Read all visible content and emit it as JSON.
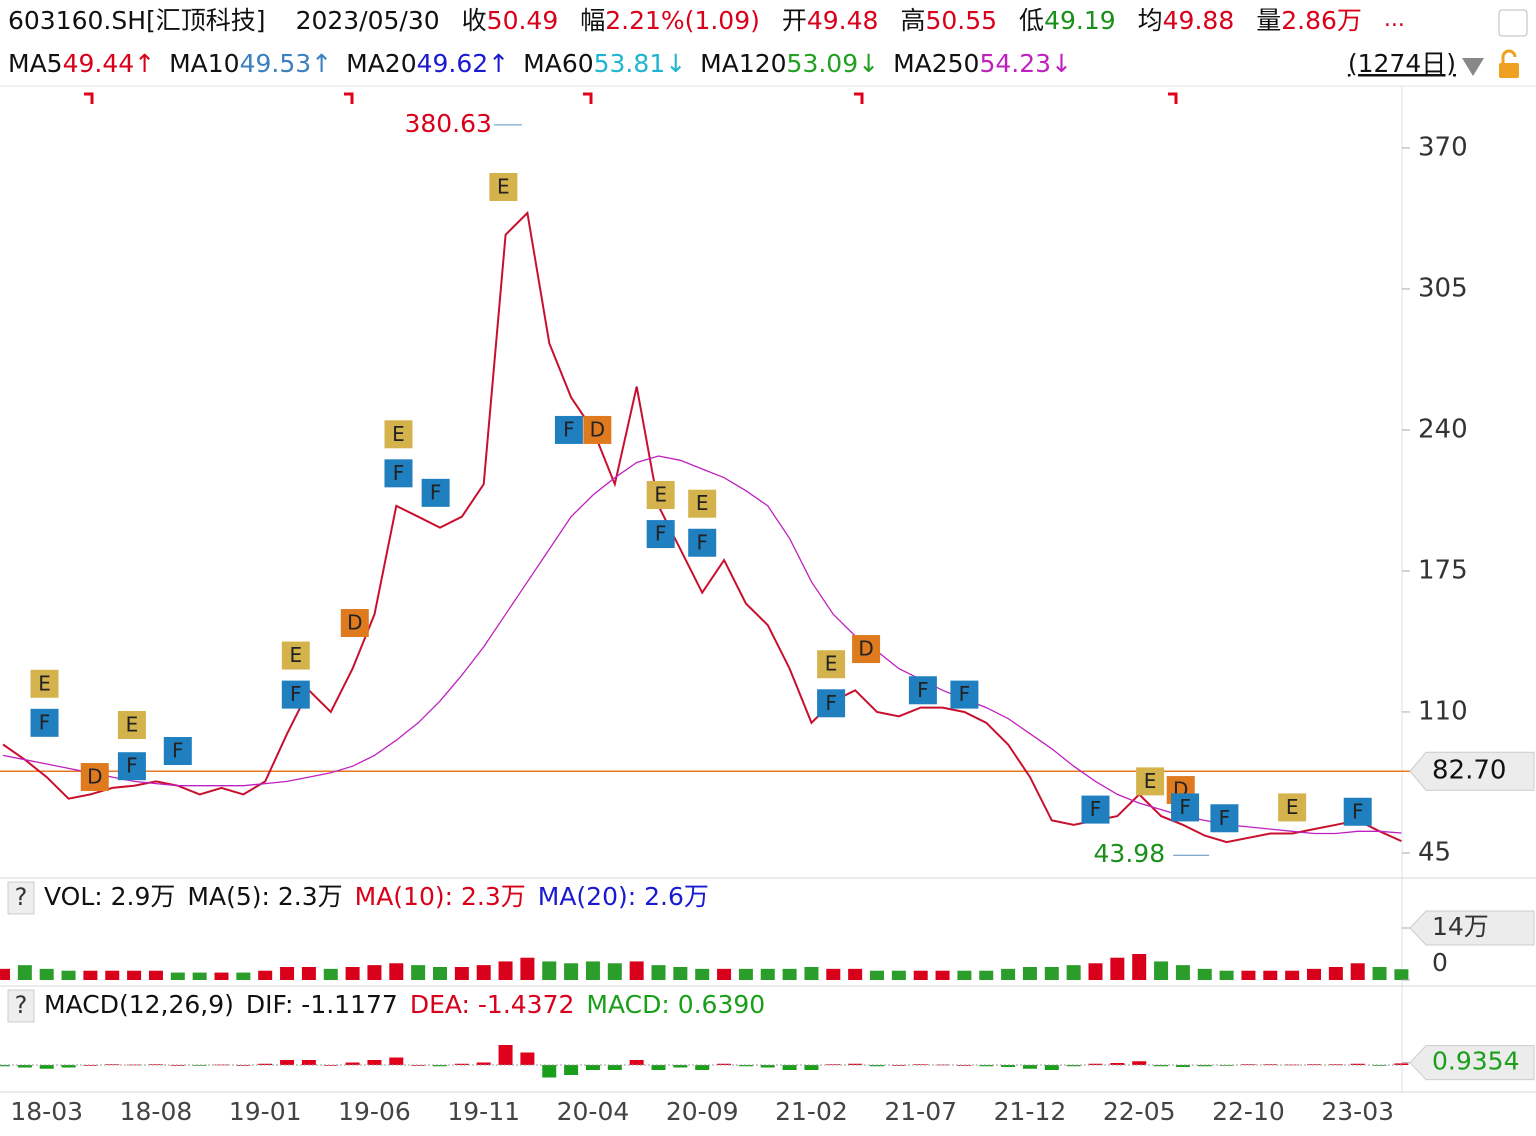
{
  "header": {
    "code": "603160.SH[汇顶科技]",
    "date": "2023/05/30",
    "quotes": [
      {
        "label": "收",
        "value": "50.49",
        "color": "#d9001b"
      },
      {
        "label": "幅",
        "value": "2.21%(1.09)",
        "color": "#d9001b"
      },
      {
        "label": "开",
        "value": "49.48",
        "color": "#d9001b"
      },
      {
        "label": "高",
        "value": "50.55",
        "color": "#d9001b"
      },
      {
        "label": "低",
        "value": "49.19",
        "color": "#1a8f1a"
      },
      {
        "label": "均",
        "value": "49.88",
        "color": "#d9001b"
      },
      {
        "label": "量",
        "value": "2.86万",
        "color": "#d9001b"
      }
    ],
    "more": "..."
  },
  "ma_bar": {
    "items": [
      {
        "label": "MA5",
        "value": "49.44↑",
        "color": "#d9001b"
      },
      {
        "label": "MA10",
        "value": "49.53↑",
        "color": "#3a7fbf"
      },
      {
        "label": "MA20",
        "value": "49.62↑",
        "color": "#1a1ad0"
      },
      {
        "label": "MA60",
        "value": "53.81↓",
        "color": "#1eb5d0"
      },
      {
        "label": "MA120",
        "value": "53.09↓",
        "color": "#22a022"
      },
      {
        "label": "MA250",
        "value": "54.23↓",
        "color": "#c020c0"
      }
    ],
    "days": "(1274日)"
  },
  "chart_data": [
    {
      "type": "line",
      "categories": [
        null,
        null,
        "18-03",
        null,
        null,
        null,
        null,
        "18-08",
        null,
        null,
        null,
        null,
        "19-01",
        null,
        null,
        null,
        null,
        "19-06",
        null,
        null,
        null,
        null,
        "19-11",
        null,
        null,
        null,
        null,
        "20-04",
        null,
        null,
        null,
        null,
        "20-09",
        null,
        null,
        null,
        null,
        "21-02",
        null,
        null,
        null,
        null,
        "21-07",
        null,
        null,
        null,
        null,
        "21-12",
        null,
        null,
        null,
        null,
        "22-05",
        null,
        null,
        null,
        null,
        "22-10",
        null,
        null,
        null,
        null,
        "23-03",
        null,
        null
      ],
      "series": [
        {
          "color": "#c8102e",
          "values": [
            95,
            88,
            80,
            70,
            72,
            75,
            76,
            78,
            76,
            72,
            75,
            72,
            78,
            100,
            120,
            110,
            130,
            155,
            205,
            200,
            195,
            200,
            215,
            330,
            340,
            280,
            255,
            240,
            215,
            260,
            205,
            185,
            165,
            180,
            160,
            150,
            130,
            105,
            115,
            120,
            110,
            108,
            112,
            112,
            110,
            105,
            95,
            80,
            60,
            58,
            60,
            62,
            72,
            62,
            58,
            53,
            50,
            52,
            54,
            54,
            56,
            58,
            60,
            55,
            50.49
          ]
        },
        {
          "color": "#c020c0",
          "values": [
            90,
            88,
            86,
            84,
            82,
            80,
            78,
            77,
            76,
            76,
            76,
            76,
            77,
            78,
            80,
            82,
            85,
            90,
            97,
            105,
            115,
            127,
            140,
            155,
            170,
            185,
            200,
            210,
            218,
            225,
            228,
            226,
            222,
            218,
            212,
            205,
            190,
            170,
            155,
            145,
            138,
            130,
            125,
            120,
            116,
            112,
            107,
            100,
            93,
            85,
            78,
            72,
            68,
            65,
            62,
            60,
            58,
            57,
            56,
            55,
            54,
            54,
            55,
            55,
            54.23
          ]
        }
      ],
      "ylim": [
        34.85,
        396.7
      ],
      "yticks": [
        370,
        305,
        240,
        175,
        110,
        45
      ],
      "level": {
        "value": 82.7,
        "label": "82.70",
        "color": "#e87722"
      },
      "max": {
        "x": 23.75,
        "value": 380.63,
        "label": "380.63"
      },
      "min": {
        "x": 55.2,
        "value": 43.98,
        "label": "43.98"
      },
      "events": [
        {
          "label": "E",
          "x": 1.9,
          "y": 123
        },
        {
          "label": "F",
          "x": 1.9,
          "y": 105
        },
        {
          "label": "D",
          "x": 4.2,
          "y": 80
        },
        {
          "label": "E",
          "x": 5.9,
          "y": 104
        },
        {
          "label": "F",
          "x": 5.9,
          "y": 85
        },
        {
          "label": "F",
          "x": 8.0,
          "y": 92
        },
        {
          "label": "E",
          "x": 13.4,
          "y": 136
        },
        {
          "label": "F",
          "x": 13.4,
          "y": 118
        },
        {
          "label": "D",
          "x": 16.1,
          "y": 151
        },
        {
          "label": "E",
          "x": 18.1,
          "y": 238
        },
        {
          "label": "F",
          "x": 18.1,
          "y": 220
        },
        {
          "label": "F",
          "x": 19.8,
          "y": 211
        },
        {
          "label": "E",
          "x": 22.9,
          "y": 352
        },
        {
          "label": "F",
          "x": 25.9,
          "y": 240
        },
        {
          "label": "D",
          "x": 27.2,
          "y": 240
        },
        {
          "label": "E",
          "x": 30.1,
          "y": 210
        },
        {
          "label": "F",
          "x": 30.1,
          "y": 192
        },
        {
          "label": "E",
          "x": 32.0,
          "y": 206
        },
        {
          "label": "F",
          "x": 32.0,
          "y": 188
        },
        {
          "label": "E",
          "x": 37.9,
          "y": 132
        },
        {
          "label": "F",
          "x": 37.9,
          "y": 114
        },
        {
          "label": "D",
          "x": 39.5,
          "y": 139
        },
        {
          "label": "F",
          "x": 42.1,
          "y": 120
        },
        {
          "label": "F",
          "x": 44.0,
          "y": 118
        },
        {
          "label": "F",
          "x": 50.0,
          "y": 65
        },
        {
          "label": "E",
          "x": 52.5,
          "y": 78
        },
        {
          "label": "D",
          "x": 53.9,
          "y": 74
        },
        {
          "label": "F",
          "x": 54.1,
          "y": 66
        },
        {
          "label": "F",
          "x": 55.9,
          "y": 61
        },
        {
          "label": "E",
          "x": 59.0,
          "y": 66
        },
        {
          "label": "F",
          "x": 62.0,
          "y": 64
        }
      ],
      "event_colors": {
        "E": "#d4b24c",
        "F": "#1f7fbf",
        "D": "#e07a1f"
      }
    },
    {
      "type": "bar",
      "help": "?",
      "items": [
        {
          "text": "VOL: 2.9万",
          "color": "#111111"
        },
        {
          "text": "MA(5): 2.3万",
          "color": "#111111"
        },
        {
          "text": "MA(10): 2.3万",
          "color": "#d9001b"
        },
        {
          "text": "MA(20): 2.6万",
          "color": "#1a1ad0"
        }
      ],
      "values": [
        3,
        4,
        3,
        2.5,
        2.5,
        2.5,
        2.5,
        2.5,
        2,
        2,
        2,
        2,
        2.5,
        3.5,
        3.5,
        3,
        3.5,
        4,
        4.5,
        4,
        3.5,
        3.5,
        4,
        5,
        6,
        5,
        4.5,
        5,
        4.5,
        5,
        4,
        3.5,
        3,
        3,
        3,
        3,
        3,
        3.5,
        3,
        3,
        2.5,
        2.5,
        2.5,
        2.5,
        2.5,
        2.5,
        3,
        3.5,
        3.5,
        4,
        4.5,
        6,
        7,
        5,
        4,
        3,
        2.5,
        2.5,
        2.5,
        2.5,
        3,
        3.5,
        4.5,
        3.5,
        2.9
      ],
      "ylim": [
        0,
        17.5
      ],
      "yticks": [
        {
          "value": 14,
          "label": "14万"
        },
        0
      ],
      "up_color": "#d9001b",
      "down_color": "#2a9d2a"
    },
    {
      "type": "macd",
      "help": "?",
      "items": [
        {
          "text": "MACD(12,26,9)",
          "color": "#111111"
        },
        {
          "text": "DIF: -1.1177",
          "color": "#111111"
        },
        {
          "text": "DEA: -1.4372",
          "color": "#d9001b"
        },
        {
          "text": "MACD: 0.6390",
          "color": "#1a9f1a"
        }
      ],
      "values": [
        -0.5,
        -1,
        -1.5,
        -1,
        0,
        0.3,
        0.2,
        0.3,
        0,
        -0.3,
        0.2,
        0,
        0.5,
        2,
        2,
        0,
        1,
        2,
        3,
        0,
        -0.5,
        0.5,
        1,
        8,
        5,
        -5,
        -4,
        -2,
        -2,
        2,
        -2,
        -1,
        -2,
        0.5,
        -0.5,
        -1,
        -2,
        -2,
        0.3,
        0.5,
        -0.5,
        0,
        0.3,
        0.2,
        0,
        -0.5,
        -0.8,
        -1.5,
        -2,
        -0.5,
        0.5,
        0.8,
        1.5,
        -0.5,
        -0.8,
        -0.5,
        -0.3,
        0.3,
        0.3,
        0.2,
        0.3,
        0.3,
        0.5,
        -0.2,
        0.639
      ],
      "ylim": [
        -12,
        12
      ],
      "yticks": [
        {
          "value": 0.9354,
          "label": "0.9354"
        }
      ],
      "up_color": "#e0001b",
      "down_color": "#1a9f1a"
    }
  ]
}
